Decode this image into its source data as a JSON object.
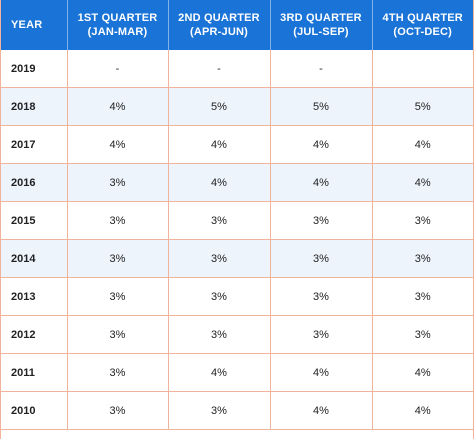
{
  "header": {
    "year": "YEAR",
    "q1_line1": "1ST QUARTER",
    "q1_line2": "(JAN-MAR)",
    "q2_line1": "2ND QUARTER",
    "q2_line2": "(APR-JUN)",
    "q3_line1": "3RD QUARTER",
    "q3_line2": "(JUL-SEP)",
    "q4_line1": "4TH QUARTER",
    "q4_line2": "(OCT-DEC)"
  },
  "rows": [
    {
      "year": "2019",
      "q1": "-",
      "q2": "-",
      "q3": "-",
      "q4": ""
    },
    {
      "year": "2018",
      "q1": "4%",
      "q2": "5%",
      "q3": "5%",
      "q4": "5%"
    },
    {
      "year": "2017",
      "q1": "4%",
      "q2": "4%",
      "q3": "4%",
      "q4": "4%"
    },
    {
      "year": "2016",
      "q1": "3%",
      "q2": "4%",
      "q3": "4%",
      "q4": "4%"
    },
    {
      "year": "2015",
      "q1": "3%",
      "q2": "3%",
      "q3": "3%",
      "q4": "3%"
    },
    {
      "year": "2014",
      "q1": "3%",
      "q2": "3%",
      "q3": "3%",
      "q4": "3%"
    },
    {
      "year": "2013",
      "q1": "3%",
      "q2": "3%",
      "q3": "3%",
      "q4": "3%"
    },
    {
      "year": "2012",
      "q1": "3%",
      "q2": "3%",
      "q3": "3%",
      "q4": "3%"
    },
    {
      "year": "2011",
      "q1": "3%",
      "q2": "4%",
      "q3": "4%",
      "q4": "4%"
    },
    {
      "year": "2010",
      "q1": "3%",
      "q2": "3%",
      "q3": "4%",
      "q4": "4%"
    }
  ],
  "colors": {
    "header_bg": "#1a73d6",
    "alt_row_bg": "#eef4fc",
    "grid_line": "#f0b49c"
  }
}
